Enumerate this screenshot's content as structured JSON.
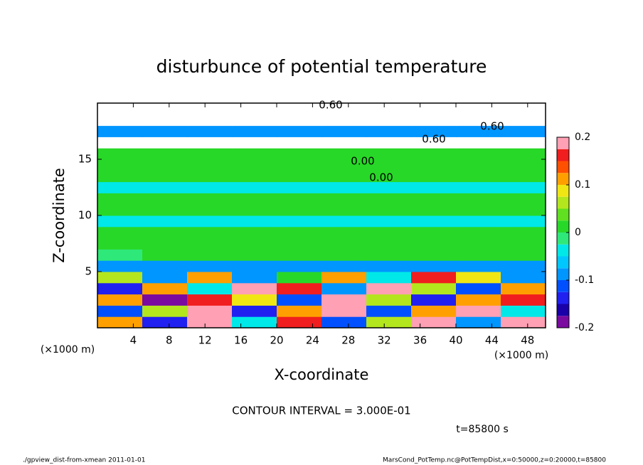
{
  "chart_data": {
    "type": "heatmap",
    "title": "disturbunce of potential temperature",
    "x_label": "X-coordinate",
    "y_label": "Z-coordinate",
    "x_unit": "(×1000 m)",
    "y_unit": "(×1000 m)",
    "xlim": [
      0,
      50
    ],
    "ylim": [
      0,
      20
    ],
    "xticks": [
      4,
      8,
      12,
      16,
      20,
      24,
      28,
      32,
      36,
      40,
      44,
      48
    ],
    "yticks": [
      5,
      10,
      15
    ],
    "x": [
      2.5,
      7.5,
      12.5,
      17.5,
      22.5,
      27.5,
      32.5,
      37.5,
      42.5,
      47.5
    ],
    "z": [
      0.5,
      1.5,
      2.5,
      3.5,
      4.5,
      5.5,
      6.5,
      7.5,
      8.5,
      9.5,
      10.5,
      11.5,
      12.5,
      13.5,
      14.5,
      15.5,
      16.5,
      17.5,
      18.5,
      19.5
    ],
    "values": [
      [
        0.12,
        -0.15,
        0.18,
        -0.05,
        0.15,
        -0.12,
        0.05,
        0.18,
        -0.1,
        0.2
      ],
      [
        -0.12,
        0.05,
        0.2,
        -0.15,
        0.1,
        0.18,
        -0.12,
        0.1,
        0.2,
        -0.05
      ],
      [
        0.1,
        -0.18,
        0.15,
        0.08,
        -0.12,
        0.2,
        0.05,
        -0.15,
        0.12,
        0.15
      ],
      [
        -0.15,
        0.1,
        -0.05,
        0.2,
        0.15,
        -0.1,
        0.18,
        0.05,
        -0.12,
        0.1
      ],
      [
        0.05,
        -0.1,
        0.12,
        -0.08,
        0.02,
        0.1,
        -0.05,
        0.15,
        0.08,
        -0.1
      ],
      [
        -0.08,
        -0.09,
        -0.08,
        -0.08,
        -0.09,
        -0.08,
        -0.08,
        -0.09,
        -0.08,
        -0.08
      ],
      [
        -0.01,
        0,
        0,
        0.01,
        0,
        0,
        0,
        0,
        0.01,
        0
      ],
      [
        0,
        0,
        0.01,
        0,
        0,
        0,
        0.01,
        0,
        0,
        0
      ],
      [
        0,
        0,
        0,
        0,
        0,
        0,
        0,
        0,
        0,
        0
      ],
      [
        -0.04,
        -0.04,
        -0.04,
        -0.04,
        -0.04,
        -0.04,
        -0.04,
        -0.04,
        -0.04,
        -0.04
      ],
      [
        0,
        0,
        0,
        0,
        0,
        0,
        0,
        0,
        0,
        0
      ],
      [
        0.01,
        0.01,
        0.01,
        0.01,
        0.01,
        0.01,
        0.01,
        0.01,
        0.01,
        0.01
      ],
      [
        -0.05,
        -0.05,
        -0.05,
        -0.05,
        -0.05,
        -0.05,
        -0.05,
        -0.05,
        -0.05,
        -0.05
      ],
      [
        0,
        0,
        0,
        0,
        0,
        0,
        0,
        0,
        0,
        0
      ],
      [
        0.01,
        0.01,
        0.01,
        0.01,
        0.01,
        0.01,
        0.01,
        0.01,
        0.01,
        0.01
      ],
      [
        0,
        0,
        0,
        0,
        0,
        0,
        0,
        0,
        0,
        0
      ],
      [
        0.3,
        0.3,
        0.3,
        0.3,
        0.3,
        0.3,
        0.3,
        0.3,
        0.3,
        0.3
      ],
      [
        -0.08,
        -0.08,
        -0.08,
        -0.08,
        -0.08,
        -0.08,
        -0.08,
        -0.08,
        -0.08,
        -0.08
      ],
      [
        0.4,
        0.4,
        0.4,
        0.4,
        0.4,
        0.4,
        0.4,
        0.4,
        0.4,
        0.4
      ],
      [
        -0.5,
        -0.5,
        -0.5,
        -0.5,
        -0.5,
        -0.5,
        -0.5,
        -0.5,
        -0.5,
        -0.5
      ]
    ],
    "colorbar": {
      "levels": [
        -0.2,
        -0.175,
        -0.15,
        -0.125,
        -0.1,
        -0.075,
        -0.05,
        -0.025,
        0,
        0.025,
        0.05,
        0.075,
        0.1,
        0.125,
        0.15,
        0.175,
        0.2
      ],
      "colors": [
        "#7a0aa0",
        "#1a00a8",
        "#2020f0",
        "#0050ff",
        "#0096ff",
        "#00c8ff",
        "#00e8e8",
        "#2ee87a",
        "#28d828",
        "#60e020",
        "#b4e61e",
        "#f0e614",
        "#ffa000",
        "#ff5000",
        "#f01e1e",
        "#ffa0b4"
      ],
      "ticks": [
        -0.2,
        -0.1,
        0,
        0.1,
        0.2
      ]
    },
    "annotations": [
      "0.00",
      "0.00",
      "0.60",
      "0.60",
      "0.60"
    ],
    "contour_note": "CONTOUR INTERVAL = 3.000E-01",
    "time_label": "t=85800 s",
    "footer_left": "./gpview_dist-from-xmean  2011-01-01",
    "footer_right": "MarsCond_PotTemp.nc@PotTempDist,x=0:50000,z=0:20000,t=85800"
  }
}
